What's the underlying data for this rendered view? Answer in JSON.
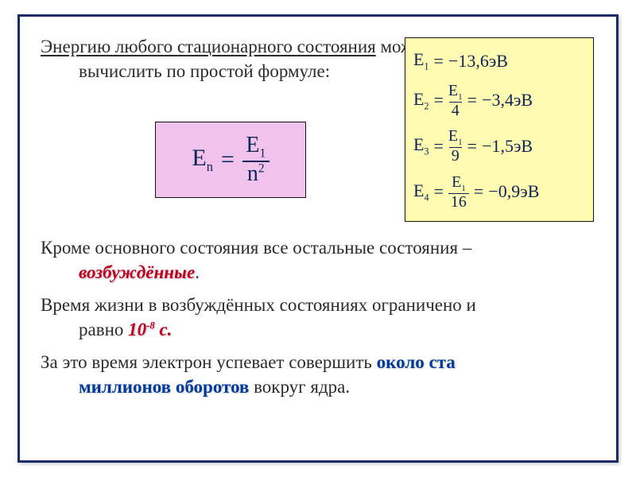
{
  "frame_border_color": "#1a2b6b",
  "text_color": "#2b2b2b",
  "formula_box": {
    "bg": "#f1c3ec",
    "text_color": "#0a2558",
    "lhs_base": "E",
    "lhs_sub": "n",
    "rhs_num_base": "E",
    "rhs_num_sub": "1",
    "rhs_den_base": "n",
    "rhs_den_sup": "2"
  },
  "calc_box": {
    "bg": "#fffbb0",
    "text_color": "#0a2558",
    "r1": {
      "lhs_b": "E",
      "lhs_s": "1",
      "rhs": "−13,6эВ"
    },
    "r2": {
      "lhs_b": "E",
      "lhs_s": "2",
      "num_b": "E",
      "num_s": "1",
      "den": "4",
      "rhs": "−3,4эВ"
    },
    "r3": {
      "lhs_b": "E",
      "lhs_s": "3",
      "num_b": "E",
      "num_s": "1",
      "den": "9",
      "rhs": "−1,5эВ"
    },
    "r4": {
      "lhs_b": "E",
      "lhs_s": "4",
      "num_b": "E",
      "num_s": "1",
      "den": "16",
      "rhs": "−0,9эВ"
    }
  },
  "p1_heading": "Энергию любого стационарного состояния",
  "p1_tail": " можно",
  "p1_line2": "вычислить по простой формуле:",
  "p2_a": "Кроме основного состояния все остальные состояния – ",
  "p2_key": "возбуждённые",
  "p2_c": ".",
  "p3_a": "Время жизни в возбуждённых состояниях ограничено и",
  "p3_b": "равно ",
  "p3_key_main": "10",
  "p3_key_exp": "-8",
  "p3_key_unit": " с.",
  "p4_a": "За это время  электрон успевает совершить ",
  "p4_key": "около ста",
  "p4_key2": "миллионов оборотов",
  "p4_tail": " вокруг ядра."
}
